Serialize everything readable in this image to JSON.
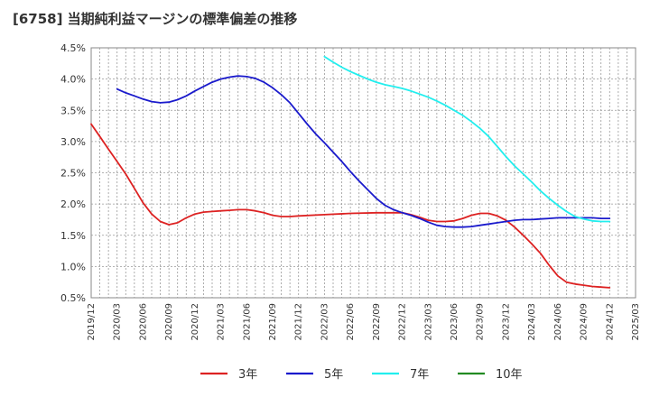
{
  "chart_data": {
    "type": "line",
    "title": "[6758]  当期純利益マージンの標準偏差の推移",
    "xlabel": "",
    "ylabel": "",
    "ylim": [
      0.5,
      4.5
    ],
    "y_ticks": [
      "0.5%",
      "1.0%",
      "1.5%",
      "2.0%",
      "2.5%",
      "3.0%",
      "3.5%",
      "4.0%",
      "4.5%"
    ],
    "x_ticks": [
      "2019/12",
      "2020/03",
      "2020/06",
      "2020/09",
      "2020/12",
      "2021/03",
      "2021/06",
      "2021/09",
      "2021/12",
      "2022/03",
      "2022/06",
      "2022/09",
      "2022/12",
      "2023/03",
      "2023/06",
      "2023/09",
      "2023/12",
      "2024/03",
      "2024/06",
      "2024/09",
      "2024/12",
      "2025/03"
    ],
    "grid": true,
    "legend_position": "bottom",
    "series": [
      {
        "name": "3年",
        "color": "#dd2222",
        "points": [
          [
            "2019/12",
            3.28
          ],
          [
            "2020/01",
            3.08
          ],
          [
            "2020/02",
            2.88
          ],
          [
            "2020/03",
            2.68
          ],
          [
            "2020/04",
            2.48
          ],
          [
            "2020/05",
            2.25
          ],
          [
            "2020/06",
            2.02
          ],
          [
            "2020/07",
            1.84
          ],
          [
            "2020/08",
            1.72
          ],
          [
            "2020/09",
            1.67
          ],
          [
            "2020/10",
            1.7
          ],
          [
            "2020/11",
            1.78
          ],
          [
            "2020/12",
            1.84
          ],
          [
            "2021/01",
            1.87
          ],
          [
            "2021/02",
            1.88
          ],
          [
            "2021/03",
            1.89
          ],
          [
            "2021/04",
            1.9
          ],
          [
            "2021/05",
            1.91
          ],
          [
            "2021/06",
            1.91
          ],
          [
            "2021/07",
            1.89
          ],
          [
            "2021/08",
            1.86
          ],
          [
            "2021/09",
            1.82
          ],
          [
            "2021/10",
            1.8
          ],
          [
            "2021/11",
            1.8
          ],
          [
            "2021/12",
            1.81
          ],
          [
            "2022/03",
            1.83
          ],
          [
            "2022/06",
            1.85
          ],
          [
            "2022/09",
            1.86
          ],
          [
            "2022/12",
            1.86
          ],
          [
            "2023/01",
            1.83
          ],
          [
            "2023/02",
            1.79
          ],
          [
            "2023/03",
            1.74
          ],
          [
            "2023/04",
            1.72
          ],
          [
            "2023/05",
            1.72
          ],
          [
            "2023/06",
            1.73
          ],
          [
            "2023/07",
            1.77
          ],
          [
            "2023/08",
            1.82
          ],
          [
            "2023/09",
            1.85
          ],
          [
            "2023/10",
            1.85
          ],
          [
            "2023/11",
            1.81
          ],
          [
            "2023/12",
            1.74
          ],
          [
            "2024/01",
            1.63
          ],
          [
            "2024/02",
            1.5
          ],
          [
            "2024/03",
            1.36
          ],
          [
            "2024/04",
            1.21
          ],
          [
            "2024/05",
            1.02
          ],
          [
            "2024/06",
            0.85
          ],
          [
            "2024/07",
            0.75
          ],
          [
            "2024/08",
            0.72
          ],
          [
            "2024/09",
            0.7
          ],
          [
            "2024/10",
            0.68
          ],
          [
            "2024/11",
            0.67
          ],
          [
            "2024/12",
            0.66
          ]
        ]
      },
      {
        "name": "5年",
        "color": "#1a1acc",
        "points": [
          [
            "2020/03",
            3.84
          ],
          [
            "2020/04",
            3.78
          ],
          [
            "2020/05",
            3.73
          ],
          [
            "2020/06",
            3.68
          ],
          [
            "2020/07",
            3.64
          ],
          [
            "2020/08",
            3.62
          ],
          [
            "2020/09",
            3.63
          ],
          [
            "2020/10",
            3.67
          ],
          [
            "2020/11",
            3.73
          ],
          [
            "2020/12",
            3.81
          ],
          [
            "2021/01",
            3.88
          ],
          [
            "2021/02",
            3.95
          ],
          [
            "2021/03",
            4.0
          ],
          [
            "2021/04",
            4.03
          ],
          [
            "2021/05",
            4.05
          ],
          [
            "2021/06",
            4.04
          ],
          [
            "2021/07",
            4.01
          ],
          [
            "2021/08",
            3.95
          ],
          [
            "2021/09",
            3.86
          ],
          [
            "2021/10",
            3.75
          ],
          [
            "2021/11",
            3.62
          ],
          [
            "2021/12",
            3.45
          ],
          [
            "2022/01",
            3.28
          ],
          [
            "2022/02",
            3.12
          ],
          [
            "2022/03",
            2.98
          ],
          [
            "2022/04",
            2.83
          ],
          [
            "2022/05",
            2.68
          ],
          [
            "2022/06",
            2.52
          ],
          [
            "2022/07",
            2.37
          ],
          [
            "2022/08",
            2.23
          ],
          [
            "2022/09",
            2.09
          ],
          [
            "2022/10",
            1.98
          ],
          [
            "2022/11",
            1.91
          ],
          [
            "2022/12",
            1.86
          ],
          [
            "2023/01",
            1.82
          ],
          [
            "2023/02",
            1.77
          ],
          [
            "2023/03",
            1.71
          ],
          [
            "2023/04",
            1.66
          ],
          [
            "2023/05",
            1.64
          ],
          [
            "2023/06",
            1.63
          ],
          [
            "2023/07",
            1.63
          ],
          [
            "2023/08",
            1.64
          ],
          [
            "2023/09",
            1.66
          ],
          [
            "2023/10",
            1.68
          ],
          [
            "2023/11",
            1.7
          ],
          [
            "2023/12",
            1.72
          ],
          [
            "2024/01",
            1.74
          ],
          [
            "2024/02",
            1.75
          ],
          [
            "2024/03",
            1.75
          ],
          [
            "2024/04",
            1.76
          ],
          [
            "2024/05",
            1.77
          ],
          [
            "2024/06",
            1.78
          ],
          [
            "2024/07",
            1.78
          ],
          [
            "2024/08",
            1.78
          ],
          [
            "2024/09",
            1.78
          ],
          [
            "2024/10",
            1.78
          ],
          [
            "2024/11",
            1.77
          ],
          [
            "2024/12",
            1.77
          ]
        ]
      },
      {
        "name": "7年",
        "color": "#22eeee",
        "points": [
          [
            "2022/03",
            4.36
          ],
          [
            "2022/04",
            4.27
          ],
          [
            "2022/05",
            4.19
          ],
          [
            "2022/06",
            4.12
          ],
          [
            "2022/07",
            4.06
          ],
          [
            "2022/08",
            4.0
          ],
          [
            "2022/09",
            3.95
          ],
          [
            "2022/10",
            3.91
          ],
          [
            "2022/11",
            3.88
          ],
          [
            "2022/12",
            3.85
          ],
          [
            "2023/01",
            3.81
          ],
          [
            "2023/02",
            3.76
          ],
          [
            "2023/03",
            3.71
          ],
          [
            "2023/04",
            3.65
          ],
          [
            "2023/05",
            3.58
          ],
          [
            "2023/06",
            3.5
          ],
          [
            "2023/07",
            3.42
          ],
          [
            "2023/08",
            3.32
          ],
          [
            "2023/09",
            3.21
          ],
          [
            "2023/10",
            3.08
          ],
          [
            "2023/11",
            2.92
          ],
          [
            "2023/12",
            2.76
          ],
          [
            "2024/01",
            2.61
          ],
          [
            "2024/02",
            2.48
          ],
          [
            "2024/03",
            2.35
          ],
          [
            "2024/04",
            2.21
          ],
          [
            "2024/05",
            2.09
          ],
          [
            "2024/06",
            1.98
          ],
          [
            "2024/07",
            1.88
          ],
          [
            "2024/08",
            1.8
          ],
          [
            "2024/09",
            1.76
          ],
          [
            "2024/10",
            1.73
          ],
          [
            "2024/11",
            1.72
          ],
          [
            "2024/12",
            1.72
          ]
        ]
      },
      {
        "name": "10年",
        "color": "#228b22",
        "points": []
      }
    ]
  }
}
